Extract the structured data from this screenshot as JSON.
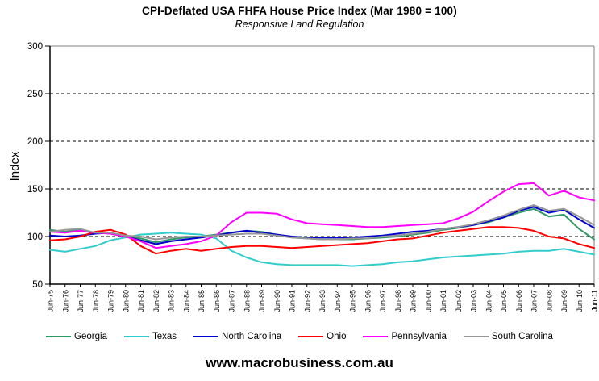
{
  "footer": {
    "site": "www.macrobusiness.com.au"
  },
  "chart_data": {
    "type": "line",
    "title": "CPI-Deflated USA FHFA House Price Index (Mar 1980 = 100)",
    "subtitle": "Responsive Land Regulation",
    "ylabel": "Index",
    "xlabel": "",
    "ylim": [
      50,
      300
    ],
    "yticks": [
      50,
      100,
      150,
      200,
      250,
      300
    ],
    "gridlines": [
      100,
      150,
      200,
      250
    ],
    "grid": "dashed horizontal",
    "legend_position": "bottom",
    "axis_color": "#000000",
    "border_color": "#808080",
    "categories": [
      "Jun-75",
      "Jun-76",
      "Jun-77",
      "Jun-78",
      "Jun-79",
      "Jun-80",
      "Jun-81",
      "Jun-82",
      "Jun-83",
      "Jun-84",
      "Jun-85",
      "Jun-86",
      "Jun-87",
      "Jun-88",
      "Jun-89",
      "Jun-90",
      "Jun-91",
      "Jun-92",
      "Jun-93",
      "Jun-94",
      "Jun-95",
      "Jun-96",
      "Jun-97",
      "Jun-98",
      "Jun-99",
      "Jun-00",
      "Jun-01",
      "Jun-02",
      "Jun-03",
      "Jun-04",
      "Jun-05",
      "Jun-06",
      "Jun-07",
      "Jun-08",
      "Jun-09",
      "Jun-10",
      "Jun-11"
    ],
    "series": [
      {
        "name": "Georgia",
        "color": "#339966",
        "values": [
          107,
          105,
          107,
          104,
          103,
          100,
          98,
          94,
          97,
          99,
          100,
          102,
          104,
          106,
          105,
          102,
          99,
          98,
          97,
          97,
          97,
          98,
          99,
          100,
          102,
          104,
          107,
          109,
          112,
          115,
          120,
          125,
          129,
          121,
          123,
          108,
          97
        ]
      },
      {
        "name": "Texas",
        "color": "#33CCCC",
        "values": [
          86,
          84,
          87,
          90,
          96,
          99,
          102,
          103,
          104,
          103,
          102,
          98,
          85,
          78,
          73,
          71,
          70,
          70,
          70,
          70,
          69,
          70,
          71,
          73,
          74,
          76,
          78,
          79,
          80,
          81,
          82,
          84,
          85,
          85,
          87,
          84,
          81
        ]
      },
      {
        "name": "North Carolina",
        "color": "#0000CC",
        "values": [
          101,
          100,
          101,
          103,
          104,
          100,
          96,
          92,
          95,
          97,
          99,
          101,
          104,
          106,
          104,
          102,
          100,
          99,
          99,
          99,
          99,
          100,
          101,
          103,
          105,
          106,
          108,
          110,
          112,
          116,
          120,
          127,
          131,
          125,
          128,
          118,
          109
        ]
      },
      {
        "name": "Ohio",
        "color": "#FF0000",
        "values": [
          96,
          97,
          100,
          105,
          107,
          102,
          90,
          82,
          85,
          87,
          85,
          87,
          89,
          90,
          90,
          89,
          88,
          89,
          90,
          91,
          92,
          93,
          95,
          97,
          98,
          101,
          104,
          106,
          108,
          110,
          110,
          109,
          106,
          100,
          98,
          92,
          88
        ]
      },
      {
        "name": "Pennsylvania",
        "color": "#FF00FF",
        "values": [
          105,
          104,
          106,
          104,
          103,
          100,
          95,
          88,
          90,
          92,
          95,
          101,
          115,
          125,
          125,
          124,
          118,
          114,
          113,
          112,
          111,
          110,
          110,
          111,
          112,
          113,
          114,
          119,
          126,
          137,
          147,
          155,
          156,
          143,
          148,
          141,
          138
        ]
      },
      {
        "name": "South Carolina",
        "color": "#969696",
        "values": [
          105,
          107,
          108,
          104,
          104,
          101,
          100,
          97,
          99,
          100,
          100,
          101,
          102,
          103,
          103,
          101,
          99,
          98,
          97,
          97,
          98,
          98,
          100,
          101,
          103,
          105,
          108,
          110,
          113,
          117,
          122,
          128,
          133,
          127,
          129,
          121,
          112
        ]
      }
    ]
  }
}
